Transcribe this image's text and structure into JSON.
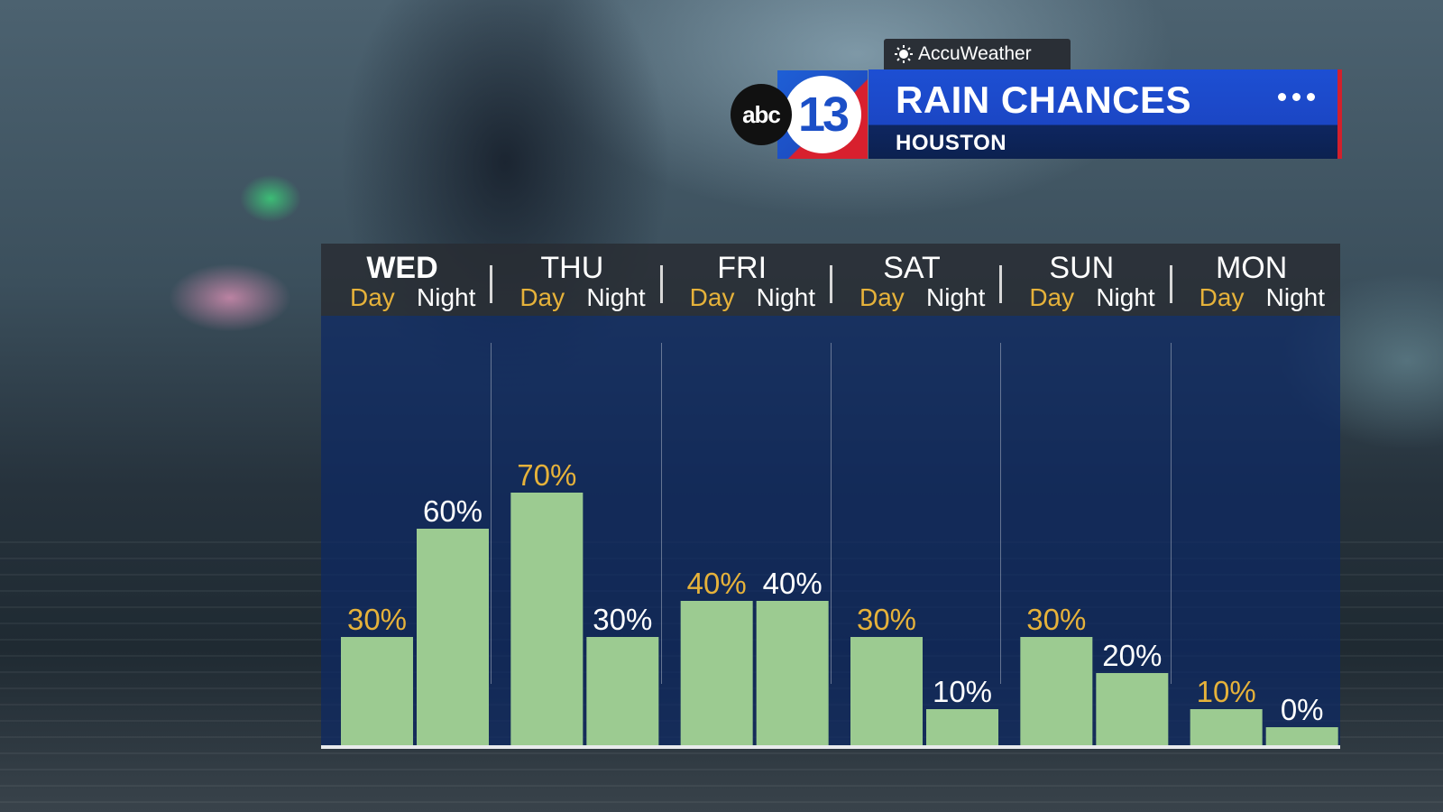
{
  "header": {
    "brand": "AccuWeather",
    "station_logo_left": "abc",
    "station_logo_right": "13",
    "title": "RAIN CHANCES",
    "subtitle": "HOUSTON",
    "menu_icon": "more-dots-icon"
  },
  "colors": {
    "day_label": "#e6b23a",
    "night_label": "#ffffff",
    "bar": "#9ccb91",
    "panel": "#0c2864",
    "title_bar": "#1d4fd3"
  },
  "chart_data": {
    "type": "bar",
    "title": "RAIN CHANCES",
    "ylim": [
      0,
      100
    ],
    "unit": "%",
    "days": [
      {
        "name": "WED",
        "day_label": "Day",
        "night_label": "Night",
        "day": 30,
        "night": 60,
        "day_text": "30%",
        "night_text": "60%"
      },
      {
        "name": "THU",
        "day_label": "Day",
        "night_label": "Night",
        "day": 70,
        "night": 30,
        "day_text": "70%",
        "night_text": "30%"
      },
      {
        "name": "FRI",
        "day_label": "Day",
        "night_label": "Night",
        "day": 40,
        "night": 40,
        "day_text": "40%",
        "night_text": "40%"
      },
      {
        "name": "SAT",
        "day_label": "Day",
        "night_label": "Night",
        "day": 30,
        "night": 10,
        "day_text": "30%",
        "night_text": "10%"
      },
      {
        "name": "SUN",
        "day_label": "Day",
        "night_label": "Night",
        "day": 30,
        "night": 20,
        "day_text": "30%",
        "night_text": "20%"
      },
      {
        "name": "MON",
        "day_label": "Day",
        "night_label": "Night",
        "day": 10,
        "night": 0,
        "day_text": "10%",
        "night_text": "0%"
      }
    ]
  }
}
